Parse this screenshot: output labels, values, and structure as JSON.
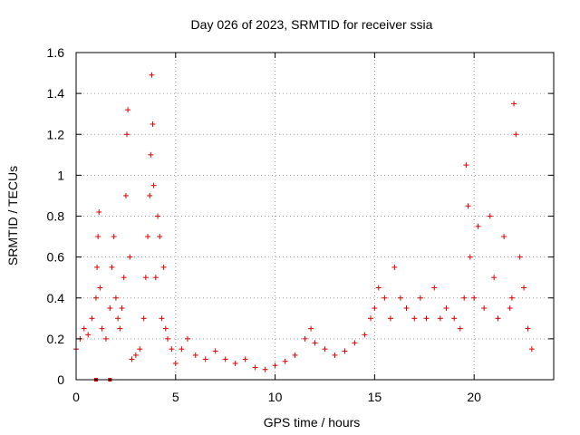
{
  "chart_data": {
    "type": "scatter",
    "title": "Day 026 of 2023, SRMTID for receiver ssia",
    "xlabel": "GPS time / hours",
    "ylabel": "SRMTID / TECUs",
    "xlim": [
      0,
      24
    ],
    "ylim": [
      0,
      1.6
    ],
    "xticks": [
      0,
      5,
      10,
      15,
      20
    ],
    "xtick_labels": [
      "0",
      "5",
      "10",
      "15",
      "20"
    ],
    "yticks": [
      0,
      0.2,
      0.4,
      0.6,
      0.8,
      1.0,
      1.2,
      1.4,
      1.6
    ],
    "ytick_labels": [
      "0",
      "0.2",
      "0.4",
      "0.6",
      "0.8",
      "1",
      "1.2",
      "1.4",
      "1.6"
    ],
    "grid": true,
    "marker": "+",
    "series": [
      {
        "name": "SRMTID",
        "color": "#dd0000",
        "x": [
          0.0,
          0.2,
          0.4,
          0.6,
          0.8,
          1.0,
          1.05,
          1.1,
          1.15,
          1.2,
          1.3,
          1.5,
          1.7,
          1.8,
          1.9,
          2.0,
          2.1,
          2.2,
          2.3,
          2.4,
          2.5,
          2.55,
          2.6,
          2.7,
          2.8,
          3.0,
          3.2,
          3.4,
          3.5,
          3.6,
          3.7,
          3.75,
          3.8,
          3.85,
          3.9,
          4.0,
          4.1,
          4.2,
          4.3,
          4.4,
          4.5,
          4.6,
          4.8,
          5.0,
          5.3,
          5.6,
          6.0,
          6.5,
          7.0,
          7.5,
          8.0,
          8.5,
          9.0,
          9.5,
          10.0,
          10.5,
          11.0,
          11.5,
          11.8,
          12.0,
          12.5,
          13.0,
          13.5,
          14.0,
          14.5,
          14.8,
          15.0,
          15.2,
          15.5,
          15.8,
          16.0,
          16.3,
          16.6,
          17.0,
          17.3,
          17.6,
          18.0,
          18.3,
          18.6,
          19.0,
          19.3,
          19.5,
          19.6,
          19.7,
          19.8,
          20.0,
          20.2,
          20.5,
          20.8,
          21.0,
          21.2,
          21.5,
          21.8,
          21.9,
          22.0,
          22.1,
          22.3,
          22.5,
          22.7,
          22.9
        ],
        "y": [
          0.15,
          0.2,
          0.25,
          0.22,
          0.3,
          0.4,
          0.55,
          0.7,
          0.82,
          0.45,
          0.25,
          0.2,
          0.35,
          0.55,
          0.7,
          0.4,
          0.3,
          0.25,
          0.35,
          0.5,
          0.9,
          1.2,
          1.32,
          0.6,
          0.1,
          0.12,
          0.15,
          0.3,
          0.5,
          0.7,
          0.9,
          1.1,
          1.49,
          1.25,
          0.95,
          0.5,
          0.8,
          0.7,
          0.3,
          0.55,
          0.25,
          0.2,
          0.15,
          0.08,
          0.15,
          0.2,
          0.12,
          0.1,
          0.14,
          0.1,
          0.08,
          0.1,
          0.06,
          0.05,
          0.07,
          0.09,
          0.12,
          0.2,
          0.25,
          0.18,
          0.15,
          0.12,
          0.14,
          0.18,
          0.22,
          0.3,
          0.35,
          0.45,
          0.4,
          0.3,
          0.55,
          0.4,
          0.35,
          0.3,
          0.4,
          0.3,
          0.45,
          0.3,
          0.35,
          0.3,
          0.25,
          0.4,
          1.05,
          0.85,
          0.6,
          0.4,
          0.75,
          0.35,
          0.8,
          0.5,
          0.3,
          0.7,
          0.35,
          0.4,
          1.35,
          1.2,
          0.6,
          0.45,
          0.25,
          0.15
        ]
      }
    ],
    "dropouts": {
      "x": [
        1.0,
        1.7
      ],
      "y": [
        0.0,
        0.0
      ]
    }
  }
}
